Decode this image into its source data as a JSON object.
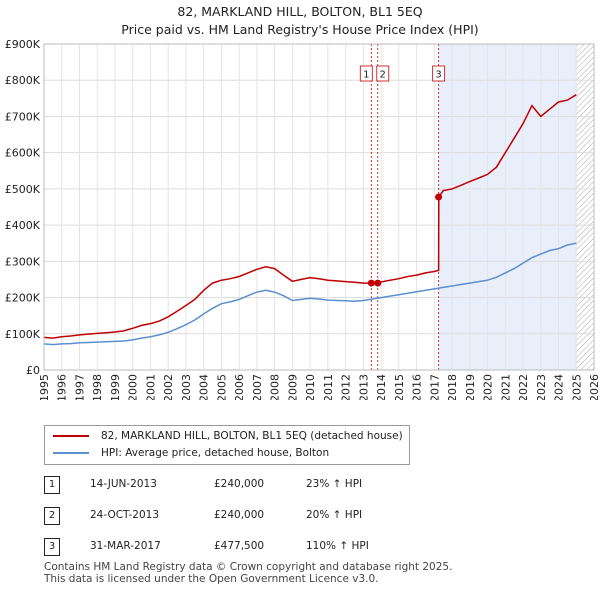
{
  "title_line1": "82, MARKLAND HILL, BOLTON, BL1 5EQ",
  "title_line2": "Price paid vs. HM Land Registry's House Price Index (HPI)",
  "legend": {
    "property": "82, MARKLAND HILL, BOLTON, BL1 5EQ (detached house)",
    "hpi": "HPI: Average price, detached house, Bolton"
  },
  "sales": [
    {
      "num": "1",
      "date": "14-JUN-2013",
      "price": "£240,000",
      "hpi_change": "23% ↑ HPI"
    },
    {
      "num": "2",
      "date": "24-OCT-2013",
      "price": "£240,000",
      "hpi_change": "20% ↑ HPI"
    },
    {
      "num": "3",
      "date": "31-MAR-2017",
      "price": "£477,500",
      "hpi_change": "110% ↑ HPI"
    }
  ],
  "footer": {
    "line1": "Contains HM Land Registry data © Crown copyright and database right 2025.",
    "line2": "This data is licensed under the Open Government Licence v3.0."
  },
  "colors": {
    "property_line": "#c00000",
    "hpi_line": "#5b8fcf",
    "shade": "#e8eefa",
    "marker_line": "#cc3333"
  },
  "chart_data": {
    "type": "line",
    "ylim": [
      0,
      900000
    ],
    "xlim": [
      1995,
      2026
    ],
    "y_ticks": [
      {
        "value": 0,
        "label": "£0"
      },
      {
        "value": 100000,
        "label": "£100K"
      },
      {
        "value": 200000,
        "label": "£200K"
      },
      {
        "value": 300000,
        "label": "£300K"
      },
      {
        "value": 400000,
        "label": "£400K"
      },
      {
        "value": 500000,
        "label": "£500K"
      },
      {
        "value": 600000,
        "label": "£600K"
      },
      {
        "value": 700000,
        "label": "£700K"
      },
      {
        "value": 800000,
        "label": "£800K"
      },
      {
        "value": 900000,
        "label": "£900K"
      }
    ],
    "x_ticks": [
      "1995",
      "1996",
      "1997",
      "1998",
      "1999",
      "2000",
      "2001",
      "2002",
      "2003",
      "2004",
      "2005",
      "2006",
      "2007",
      "2008",
      "2009",
      "2010",
      "2011",
      "2012",
      "2013",
      "2014",
      "2015",
      "2016",
      "2017",
      "2018",
      "2019",
      "2020",
      "2021",
      "2022",
      "2023",
      "2024",
      "2025",
      "2026"
    ],
    "shaded_range": [
      2017.25,
      2025.0
    ],
    "hatched_from": 2025.0,
    "series": [
      {
        "name": "82, MARKLAND HILL, BOLTON, BL1 5EQ (detached house)",
        "x": [
          1995.0,
          1995.5,
          1996.0,
          1996.5,
          1997.0,
          1997.5,
          1998.0,
          1998.5,
          1999.0,
          1999.5,
          2000.0,
          2000.5,
          2001.0,
          2001.5,
          2002.0,
          2002.5,
          2003.0,
          2003.5,
          2004.0,
          2004.5,
          2005.0,
          2005.5,
          2006.0,
          2006.5,
          2007.0,
          2007.5,
          2008.0,
          2008.5,
          2009.0,
          2009.5,
          2010.0,
          2010.5,
          2011.0,
          2011.5,
          2012.0,
          2012.5,
          2013.0,
          2013.45,
          2013.81,
          2014.0,
          2014.5,
          2015.0,
          2015.5,
          2016.0,
          2016.5,
          2017.0,
          2017.24,
          2017.25,
          2017.5,
          2018.0,
          2018.5,
          2019.0,
          2019.5,
          2020.0,
          2020.5,
          2021.0,
          2021.5,
          2022.0,
          2022.3,
          2022.5,
          2023.0,
          2023.5,
          2024.0,
          2024.5,
          2025.0
        ],
        "values": [
          90000,
          88000,
          92000,
          94000,
          97000,
          99000,
          101000,
          103000,
          105000,
          108000,
          115000,
          123000,
          128000,
          135000,
          147000,
          162000,
          178000,
          195000,
          220000,
          240000,
          248000,
          252000,
          258000,
          268000,
          278000,
          285000,
          280000,
          262000,
          245000,
          250000,
          255000,
          252000,
          248000,
          246000,
          244000,
          242000,
          240000,
          240000,
          240000,
          243000,
          248000,
          252000,
          258000,
          262000,
          268000,
          272000,
          275000,
          477500,
          495000,
          500000,
          510000,
          520000,
          530000,
          540000,
          560000,
          600000,
          640000,
          680000,
          710000,
          730000,
          700000,
          720000,
          740000,
          745000,
          760000
        ]
      },
      {
        "name": "HPI: Average price, detached house, Bolton",
        "x": [
          1995.0,
          1995.5,
          1996.0,
          1996.5,
          1997.0,
          1997.5,
          1998.0,
          1998.5,
          1999.0,
          1999.5,
          2000.0,
          2000.5,
          2001.0,
          2001.5,
          2002.0,
          2002.5,
          2003.0,
          2003.5,
          2004.0,
          2004.5,
          2005.0,
          2005.5,
          2006.0,
          2006.5,
          2007.0,
          2007.5,
          2008.0,
          2008.5,
          2009.0,
          2009.5,
          2010.0,
          2010.5,
          2011.0,
          2011.5,
          2012.0,
          2012.5,
          2013.0,
          2013.5,
          2014.0,
          2014.5,
          2015.0,
          2015.5,
          2016.0,
          2016.5,
          2017.0,
          2017.5,
          2018.0,
          2018.5,
          2019.0,
          2019.5,
          2020.0,
          2020.5,
          2021.0,
          2021.5,
          2022.0,
          2022.5,
          2023.0,
          2023.5,
          2024.0,
          2024.5,
          2025.0
        ],
        "values": [
          72000,
          70000,
          72000,
          73000,
          75000,
          76000,
          77000,
          78000,
          79000,
          80000,
          83000,
          88000,
          92000,
          97000,
          104000,
          114000,
          125000,
          138000,
          155000,
          170000,
          183000,
          188000,
          195000,
          205000,
          215000,
          220000,
          215000,
          205000,
          192000,
          195000,
          198000,
          196000,
          193000,
          192000,
          191000,
          190000,
          192000,
          196000,
          200000,
          204000,
          208000,
          212000,
          216000,
          220000,
          224000,
          228000,
          232000,
          236000,
          240000,
          244000,
          248000,
          256000,
          268000,
          280000,
          295000,
          310000,
          320000,
          330000,
          335000,
          345000,
          350000
        ]
      }
    ],
    "sale_markers": [
      {
        "label": "1",
        "x": 2013.45,
        "value": 240000
      },
      {
        "label": "2",
        "x": 2013.81,
        "value": 240000
      },
      {
        "label": "3",
        "x": 2017.24,
        "value": 477500
      }
    ]
  }
}
